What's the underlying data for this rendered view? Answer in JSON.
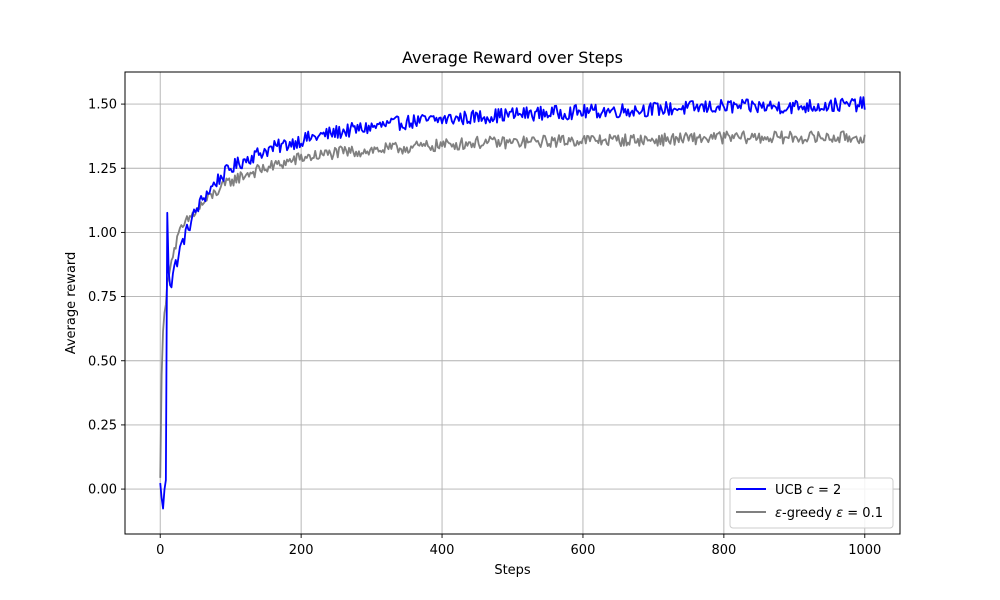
{
  "chart_data": {
    "type": "line",
    "title": "Average Reward over Steps",
    "xlabel": "Steps",
    "ylabel": "Average reward",
    "xlim": [
      -50,
      1050
    ],
    "ylim": [
      -0.175,
      1.625
    ],
    "x_ticks": [
      0,
      200,
      400,
      600,
      800,
      1000
    ],
    "y_ticks": [
      0.0,
      0.25,
      0.5,
      0.75,
      1.0,
      1.25,
      1.5
    ],
    "x_tick_labels": [
      "0",
      "200",
      "400",
      "600",
      "800",
      "1000"
    ],
    "y_tick_labels": [
      "0.00",
      "0.25",
      "0.50",
      "0.75",
      "1.00",
      "1.25",
      "1.50"
    ],
    "grid": true,
    "legend_position": "bottom-right",
    "series": [
      {
        "name": "UCB c = 2",
        "legend_prefix": "UCB ",
        "legend_math": "c",
        "legend_suffix": " = 2",
        "color": "#0000ff",
        "noise": 0.028,
        "x": [
          0,
          2,
          4,
          6,
          8,
          10,
          12,
          14,
          16,
          18,
          20,
          25,
          30,
          40,
          50,
          60,
          80,
          100,
          125,
          150,
          200,
          250,
          300,
          350,
          400,
          450,
          500,
          600,
          700,
          800,
          900,
          1000
        ],
        "values": [
          0.02,
          -0.03,
          -0.08,
          0.0,
          0.03,
          1.08,
          0.85,
          0.8,
          0.79,
          0.84,
          0.86,
          0.9,
          0.95,
          1.02,
          1.08,
          1.13,
          1.2,
          1.25,
          1.29,
          1.32,
          1.36,
          1.39,
          1.41,
          1.43,
          1.44,
          1.45,
          1.46,
          1.47,
          1.48,
          1.49,
          1.49,
          1.5
        ]
      },
      {
        "name": "ε-greedy ε = 0.1",
        "legend_prefix": "",
        "legend_math": "ε",
        "legend_suffix": "-greedy ",
        "legend_math2": "ε",
        "legend_suffix2": " = 0.1",
        "color": "#808080",
        "noise": 0.024,
        "x": [
          0,
          2,
          4,
          6,
          8,
          10,
          15,
          20,
          25,
          30,
          40,
          50,
          60,
          80,
          100,
          125,
          150,
          200,
          250,
          300,
          350,
          400,
          450,
          500,
          600,
          700,
          800,
          900,
          1000
        ],
        "values": [
          0.04,
          0.45,
          0.62,
          0.68,
          0.72,
          0.8,
          0.88,
          0.93,
          0.98,
          1.01,
          1.05,
          1.08,
          1.11,
          1.16,
          1.2,
          1.23,
          1.25,
          1.29,
          1.31,
          1.32,
          1.33,
          1.34,
          1.35,
          1.35,
          1.36,
          1.36,
          1.37,
          1.37,
          1.37
        ]
      }
    ]
  }
}
